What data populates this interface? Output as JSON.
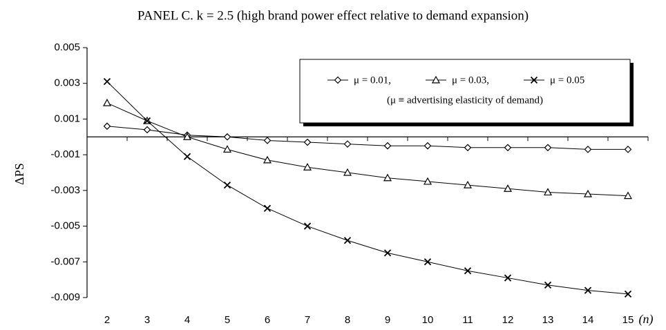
{
  "chart_data": {
    "type": "line",
    "title": "PANEL C.  k = 2.5 (high brand power effect relative to demand expansion)",
    "y_label": "ΔPS",
    "x_label": "(n)",
    "categories": [
      "2",
      "3",
      "4",
      "5",
      "6",
      "7",
      "8",
      "9",
      "10",
      "11",
      "12",
      "13",
      "14",
      "15"
    ],
    "ylim": [
      -0.009,
      0.005
    ],
    "yticks": [
      -0.009,
      -0.007,
      -0.005,
      -0.003,
      -0.001,
      0.001,
      0.003,
      0.005
    ],
    "legend_note": "(μ ≡ advertising elasticity of demand)",
    "series": [
      {
        "name": "μ = 0.01,",
        "color": "#000000",
        "marker": "diamond",
        "values": [
          0.0006,
          0.0004,
          0.0001,
          0.0,
          -0.0002,
          -0.0003,
          -0.0004,
          -0.0005,
          -0.0005,
          -0.0006,
          -0.0006,
          -0.0006,
          -0.0007,
          -0.0007
        ]
      },
      {
        "name": "μ = 0.03,",
        "color": "#000000",
        "marker": "triangle",
        "values": [
          0.0019,
          0.0009,
          0.0,
          -0.0007,
          -0.0013,
          -0.0017,
          -0.002,
          -0.0023,
          -0.0025,
          -0.0027,
          -0.0029,
          -0.0031,
          -0.0032,
          -0.0033
        ]
      },
      {
        "name": "μ = 0.05",
        "color": "#000000",
        "marker": "x",
        "values": [
          0.0031,
          0.0009,
          -0.0011,
          -0.0027,
          -0.004,
          -0.005,
          -0.0058,
          -0.0065,
          -0.007,
          -0.0075,
          -0.0079,
          -0.0083,
          -0.0086,
          -0.0088
        ]
      }
    ]
  }
}
